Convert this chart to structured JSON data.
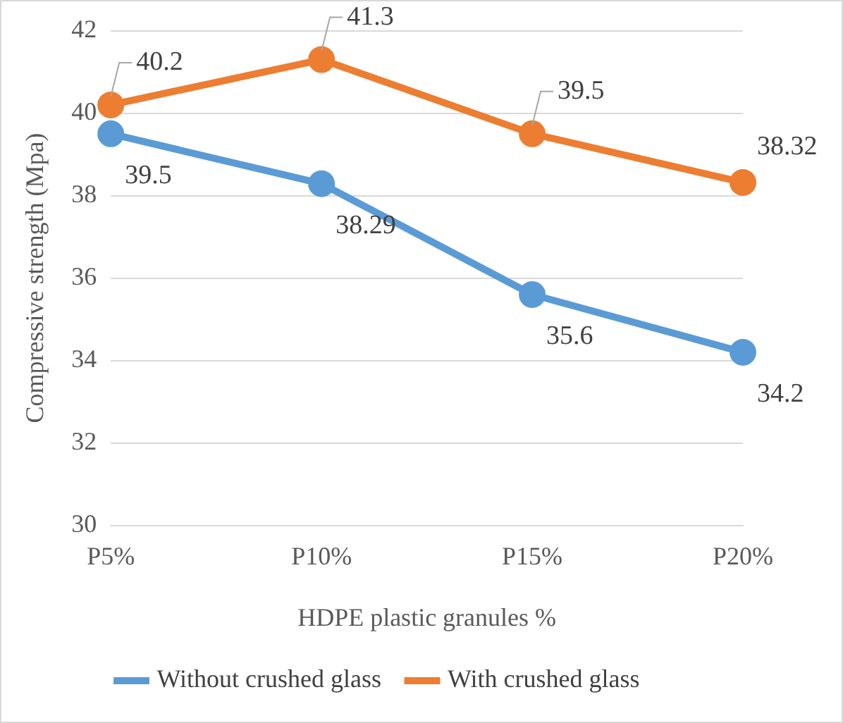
{
  "chart_data": {
    "type": "line",
    "xlabel": "HDPE plastic granules %",
    "ylabel": "Compressive strength (Mpa)",
    "categories": [
      "P5%",
      "P10%",
      "P15%",
      "P20%"
    ],
    "series": [
      {
        "name": "Without crushed glass",
        "color": "#5b9bd5",
        "values": [
          39.5,
          38.29,
          35.6,
          34.2
        ]
      },
      {
        "name": "With crushed glass",
        "color": "#ed7d31",
        "values": [
          40.2,
          41.3,
          39.5,
          38.32
        ]
      }
    ],
    "ylim": [
      30,
      42
    ],
    "yticks": [
      30,
      32,
      34,
      36,
      38,
      40,
      42
    ],
    "grid": "y",
    "legend": "bottom",
    "marker": "circle",
    "line_style": "solid",
    "data_labels": true
  }
}
